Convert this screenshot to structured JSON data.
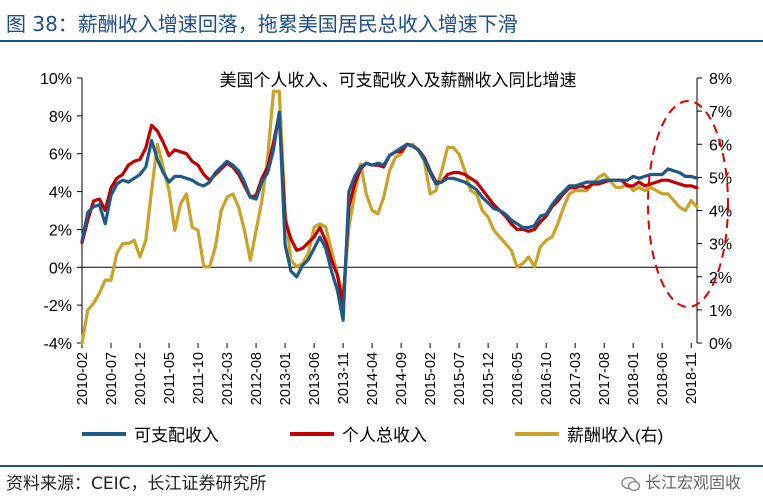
{
  "figure": {
    "label": "图 38：薪酬收入增速回落，拖累美国居民总收入增速下滑",
    "source": "资料来源：CEIC，长江证券研究所",
    "watermark": "长江宏观固收"
  },
  "colors": {
    "disposable": "#1d5a8a",
    "personal": "#c00000",
    "wages": "#c9a227",
    "highlight": "#e00000",
    "header": "#1f4e8c"
  },
  "chart_data": {
    "type": "line",
    "title": "美国个人收入、可支配收入及薪酬收入同比增速",
    "xlabel": "",
    "ylabel": "",
    "x_range": [
      0,
      106
    ],
    "x_ticks": [
      {
        "i": 0,
        "label": "2010-02"
      },
      {
        "i": 5,
        "label": "2010-07"
      },
      {
        "i": 10,
        "label": "2010-12"
      },
      {
        "i": 15,
        "label": "2011-05"
      },
      {
        "i": 20,
        "label": "2011-10"
      },
      {
        "i": 25,
        "label": "2012-03"
      },
      {
        "i": 30,
        "label": "2012-08"
      },
      {
        "i": 35,
        "label": "2013-01"
      },
      {
        "i": 40,
        "label": "2013-06"
      },
      {
        "i": 45,
        "label": "2013-11"
      },
      {
        "i": 50,
        "label": "2014-04"
      },
      {
        "i": 55,
        "label": "2014-09"
      },
      {
        "i": 60,
        "label": "2015-02"
      },
      {
        "i": 65,
        "label": "2015-07"
      },
      {
        "i": 70,
        "label": "2015-12"
      },
      {
        "i": 75,
        "label": "2016-05"
      },
      {
        "i": 80,
        "label": "2016-10"
      },
      {
        "i": 85,
        "label": "2017-03"
      },
      {
        "i": 90,
        "label": "2017-08"
      },
      {
        "i": 95,
        "label": "2018-01"
      },
      {
        "i": 100,
        "label": "2018-06"
      },
      {
        "i": 105,
        "label": "2018-11"
      }
    ],
    "y_left": {
      "min": -4,
      "max": 10,
      "ticks": [
        -4,
        -2,
        0,
        2,
        4,
        6,
        8,
        10
      ],
      "tick_labels": [
        "-4%",
        "-2%",
        "0%",
        "2%",
        "4%",
        "6%",
        "8%",
        "10%"
      ]
    },
    "y_right": {
      "min": 0,
      "max": 8,
      "ticks": [
        0,
        1,
        2,
        3,
        4,
        5,
        6,
        7,
        8
      ],
      "tick_labels": [
        "0%",
        "1%",
        "2%",
        "3%",
        "4%",
        "5%",
        "6%",
        "7%",
        "8%"
      ]
    },
    "series": [
      {
        "name": "可支配收入",
        "axis": "left",
        "color": "#1d5a8a",
        "values": [
          1.4,
          2.9,
          3.2,
          3.3,
          2.3,
          3.8,
          4.4,
          4.6,
          4.5,
          4.7,
          4.9,
          5.3,
          6.7,
          5.7,
          5.0,
          4.5,
          4.8,
          4.8,
          4.7,
          4.6,
          4.4,
          4.3,
          4.5,
          5.0,
          5.3,
          5.6,
          5.4,
          5.1,
          4.5,
          3.7,
          3.6,
          4.5,
          5.0,
          6.2,
          8.2,
          1.2,
          -0.2,
          -0.5,
          0.1,
          0.4,
          1.0,
          1.6,
          1.0,
          -0.2,
          -1.2,
          -2.8,
          4.0,
          4.8,
          5.3,
          5.5,
          5.4,
          5.5,
          5.4,
          5.9,
          6.1,
          6.3,
          6.5,
          6.4,
          6.2,
          5.7,
          5.0,
          4.4,
          4.5,
          4.7,
          4.7,
          4.6,
          4.5,
          4.3,
          4.1,
          3.7,
          3.4,
          3.1,
          3.0,
          2.8,
          2.5,
          2.3,
          2.1,
          2.1,
          2.2,
          2.7,
          2.8,
          3.3,
          3.7,
          4.0,
          4.3,
          4.3,
          4.4,
          4.5,
          4.5,
          4.5,
          4.6,
          4.6,
          4.6,
          4.6,
          4.6,
          4.8,
          4.7,
          4.8,
          4.9,
          4.9,
          4.9,
          5.2,
          5.1,
          5.0,
          4.8,
          4.8,
          4.7
        ]
      },
      {
        "name": "个人总收入",
        "axis": "left",
        "color": "#c00000",
        "values": [
          1.3,
          2.5,
          3.5,
          3.6,
          3.0,
          4.2,
          4.7,
          4.9,
          5.4,
          5.6,
          5.7,
          6.3,
          7.5,
          7.2,
          6.6,
          5.9,
          6.2,
          6.1,
          6.0,
          5.6,
          5.4,
          4.9,
          4.6,
          4.9,
          5.2,
          5.5,
          5.3,
          4.9,
          4.3,
          3.7,
          3.8,
          4.7,
          5.3,
          6.6,
          8.1,
          2.5,
          1.5,
          0.9,
          1.0,
          1.3,
          1.6,
          2.1,
          1.4,
          0.4,
          -0.4,
          -2.0,
          3.2,
          4.4,
          5.2,
          5.5,
          5.4,
          5.4,
          5.3,
          5.9,
          6.1,
          6.1,
          6.5,
          6.4,
          6.2,
          5.8,
          5.1,
          4.5,
          4.5,
          4.9,
          5.0,
          5.0,
          4.9,
          4.7,
          4.5,
          4.1,
          3.7,
          3.3,
          3.0,
          2.7,
          2.3,
          2.0,
          2.0,
          1.9,
          2.0,
          2.4,
          2.7,
          3.2,
          3.5,
          3.9,
          4.2,
          4.2,
          4.3,
          4.2,
          4.4,
          4.4,
          4.5,
          4.6,
          4.6,
          4.6,
          4.3,
          4.3,
          4.5,
          4.3,
          4.4,
          4.5,
          4.6,
          4.6,
          4.5,
          4.4,
          4.3,
          4.3,
          4.2
        ]
      },
      {
        "name": "薪酬收入(右)",
        "axis": "right",
        "color": "#c9a227",
        "values": [
          0.0,
          1.0,
          1.2,
          1.5,
          1.9,
          1.9,
          2.7,
          3.0,
          3.0,
          3.1,
          2.6,
          3.1,
          4.6,
          6.0,
          5.3,
          4.6,
          3.4,
          4.2,
          4.5,
          3.5,
          3.4,
          2.3,
          2.3,
          2.9,
          4.0,
          4.4,
          4.5,
          4.1,
          3.4,
          2.5,
          3.4,
          4.3,
          5.6,
          7.6,
          7.6,
          4.0,
          2.5,
          2.3,
          2.4,
          2.7,
          3.5,
          3.6,
          3.5,
          2.8,
          2.1,
          1.4,
          3.5,
          4.5,
          5.4,
          4.5,
          4.0,
          3.9,
          4.4,
          5.2,
          5.6,
          5.7,
          6.0,
          6.0,
          5.8,
          5.5,
          4.5,
          4.6,
          5.2,
          5.9,
          5.9,
          5.7,
          5.2,
          4.6,
          4.5,
          4.0,
          3.8,
          3.4,
          3.2,
          3.0,
          2.8,
          2.3,
          2.4,
          2.6,
          2.3,
          2.9,
          3.1,
          3.2,
          3.6,
          4.1,
          4.5,
          4.6,
          4.6,
          4.6,
          4.8,
          5.0,
          5.1,
          4.9,
          4.7,
          4.7,
          4.8,
          4.6,
          4.7,
          4.6,
          4.7,
          4.6,
          4.5,
          4.5,
          4.3,
          4.1,
          4.0,
          4.3,
          4.1
        ]
      }
    ],
    "legend": [
      "可支配收入",
      "个人总收入",
      "薪酬收入(右)"
    ],
    "legend_placement": "bottom",
    "grid": false,
    "annotation": "dashed red ellipse highlighting 2018 period"
  }
}
